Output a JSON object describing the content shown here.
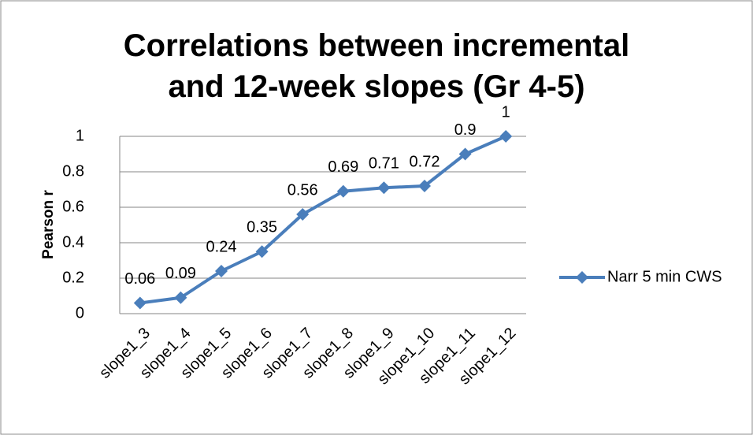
{
  "chart_data": {
    "type": "line",
    "title": "Correlations between incremental and 12-week slopes (Gr 4-5)",
    "y_label": "Pearson r",
    "categories": [
      "slope1_3",
      "slope1_4",
      "slope1_5",
      "slope1_6",
      "slope1_7",
      "slope1_8",
      "slope1_9",
      "slope1_10",
      "slope1_11",
      "slope1_12"
    ],
    "series": [
      {
        "name": "Narr 5 min CWS",
        "color": "#4a7ebb",
        "values": [
          0.06,
          0.09,
          0.24,
          0.35,
          0.56,
          0.69,
          0.71,
          0.72,
          0.9,
          1
        ]
      }
    ],
    "ylim": [
      0,
      1
    ],
    "yticks": [
      0,
      0.2,
      0.4,
      0.6,
      0.8,
      1
    ],
    "grid": true,
    "legend": "right"
  }
}
